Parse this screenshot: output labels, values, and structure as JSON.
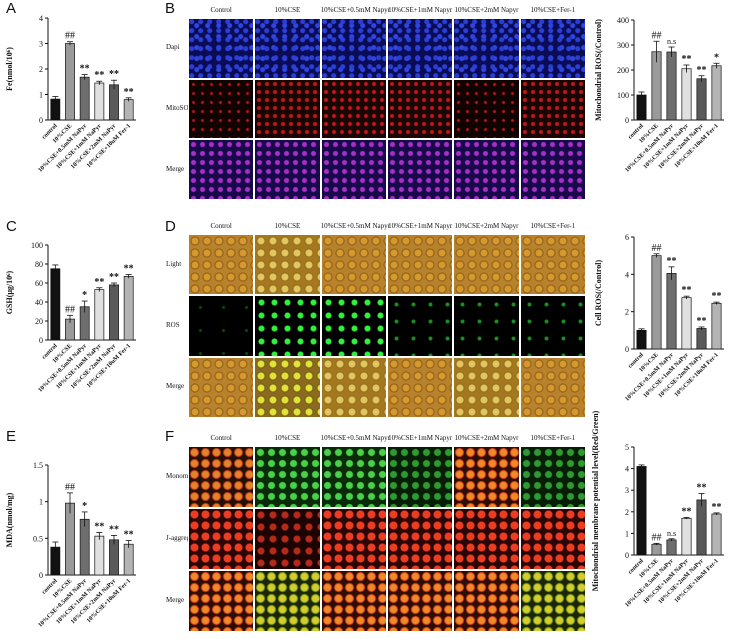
{
  "panel_letters": [
    "A",
    "B",
    "C",
    "D",
    "E",
    "F"
  ],
  "colors": {
    "control": "#111111",
    "cse": "#9a9a9a",
    "g1": "#6e6e6e",
    "g2": "#e0e0e0",
    "g3": "#5a5a5a",
    "g4": "#b4b4b4"
  },
  "panel_B": {
    "columns": [
      "Control",
      "10%CSE",
      "10%CSE+0.5mM Napyr",
      "10%CSE+1mM Napyr",
      "10%CSE+2mM Napyr",
      "10%CSE+Fer-1"
    ],
    "rows": [
      "Dapi",
      "MitoSOX",
      "Merge"
    ]
  },
  "panel_D": {
    "columns": [
      "Control",
      "10%CSE",
      "10%CSE+0.5mM Napyr",
      "10%CSE+1mM Napyr",
      "10%CSE+2mM Napyr",
      "10%CSE+Fer-1"
    ],
    "rows": [
      "Light",
      "ROS",
      "Merge"
    ]
  },
  "panel_F": {
    "columns": [
      "Control",
      "10%CSE",
      "10%CSE+0.5mM Napyr",
      "10%CSE+1mM Napyr",
      "10%CSE+2mM Napyr",
      "10%CSE+Fer-1"
    ],
    "rows": [
      "Monomer",
      "J-aggregate",
      "Merge"
    ]
  },
  "chart_data": [
    {
      "id": "A",
      "type": "bar",
      "categories": [
        "control",
        "10%CSE",
        "10%CSE+0.5mM NaPyr",
        "10%CSE+1mM NaPyr",
        "10%CSE+2mM NaPyr",
        "10%CSE+10uM Fer-1"
      ],
      "values": [
        0.82,
        3.0,
        1.68,
        1.45,
        1.38,
        0.8
      ],
      "errors": [
        0.1,
        0.07,
        0.1,
        0.07,
        0.18,
        0.07
      ],
      "annotations": [
        "",
        "##",
        "**",
        "**",
        "**",
        "**"
      ],
      "ylabel": "Fe(nmol/10⁶)",
      "ylim": [
        0,
        4
      ],
      "yticks": [
        0,
        1,
        2,
        3,
        4
      ]
    },
    {
      "id": "B",
      "type": "bar",
      "categories": [
        "control",
        "10%CSE",
        "10%CSE+0.5mM NaPyr",
        "10%CSE+1mM NaPyr",
        "10%CSE+2mM NaPyr",
        "10%CSE+10uM Fer-1"
      ],
      "values": [
        100,
        273,
        272,
        205,
        165,
        217
      ],
      "errors": [
        12,
        42,
        20,
        15,
        12,
        10
      ],
      "annotations": [
        "",
        "##",
        "n.s",
        "**",
        "**",
        "*"
      ],
      "ylabel": "Mitochondrial ROS(/Control)",
      "ylim": [
        0,
        400
      ],
      "yticks": [
        0,
        100,
        200,
        300,
        400
      ]
    },
    {
      "id": "C",
      "type": "bar",
      "categories": [
        "control",
        "10%CSE",
        "10%CSE+0.5mM NaPyr",
        "10%CSE+1mM NaPyr",
        "10%CSE+2mM NaPyr",
        "10%CSE+10uM Fer-1"
      ],
      "values": [
        75,
        22,
        35,
        53,
        58,
        67
      ],
      "errors": [
        4,
        4,
        6,
        2,
        2,
        2
      ],
      "annotations": [
        "",
        "##",
        "*",
        "**",
        "**",
        "**"
      ],
      "ylabel": "GSH(μg/10⁶)",
      "ylim": [
        0,
        100
      ],
      "yticks": [
        0,
        20,
        40,
        60,
        80,
        100
      ]
    },
    {
      "id": "D",
      "type": "bar",
      "categories": [
        "control",
        "10%CSE",
        "10%CSE+0.5mM NaPyr",
        "10%CSE+1mM NaPyr",
        "10%CSE+2mM NaPyr",
        "10%CSE+10uM Fer-1"
      ],
      "values": [
        1.0,
        5.0,
        4.05,
        2.75,
        1.1,
        2.45
      ],
      "errors": [
        0.08,
        0.1,
        0.35,
        0.08,
        0.08,
        0.06
      ],
      "annotations": [
        "",
        "##",
        "**",
        "**",
        "**",
        "**"
      ],
      "ylabel": "Cell ROS(/Control)",
      "ylim": [
        0,
        6
      ],
      "yticks": [
        0,
        2,
        4,
        6
      ]
    },
    {
      "id": "E",
      "type": "bar",
      "categories": [
        "control",
        "10%CSE",
        "10%CSE+0.5mM NaPyr",
        "10%CSE+1mM NaPyr",
        "10%CSE+2mM NaPyr",
        "10%CSE+10uM Fer-1"
      ],
      "values": [
        0.38,
        0.98,
        0.76,
        0.53,
        0.48,
        0.42
      ],
      "errors": [
        0.07,
        0.14,
        0.1,
        0.05,
        0.06,
        0.05
      ],
      "annotations": [
        "",
        "##",
        "*",
        "**",
        "**",
        "**"
      ],
      "ylabel": "MDA(nmol/mg)",
      "ylim": [
        0,
        1.5
      ],
      "yticks": [
        0,
        0.5,
        1.0,
        1.5
      ]
    },
    {
      "id": "F",
      "type": "bar",
      "categories": [
        "control",
        "10%CSE",
        "10%CSE+0.5mM NaPyr",
        "10%CSE+1mM NaPyr",
        "10%CSE+2mM NaPyr",
        "10%CSE+10uM Fer-1"
      ],
      "values": [
        4.1,
        0.5,
        0.7,
        1.7,
        2.55,
        1.9
      ],
      "errors": [
        0.07,
        0.04,
        0.05,
        0.04,
        0.3,
        0.05
      ],
      "annotations": [
        "",
        "##",
        "n.s",
        "**",
        "**",
        "**"
      ],
      "ylabel": "Mitochondrial membrane potential level(Red/Green)",
      "ylim": [
        0,
        5
      ],
      "yticks": [
        0,
        1,
        2,
        3,
        4,
        5
      ]
    }
  ]
}
